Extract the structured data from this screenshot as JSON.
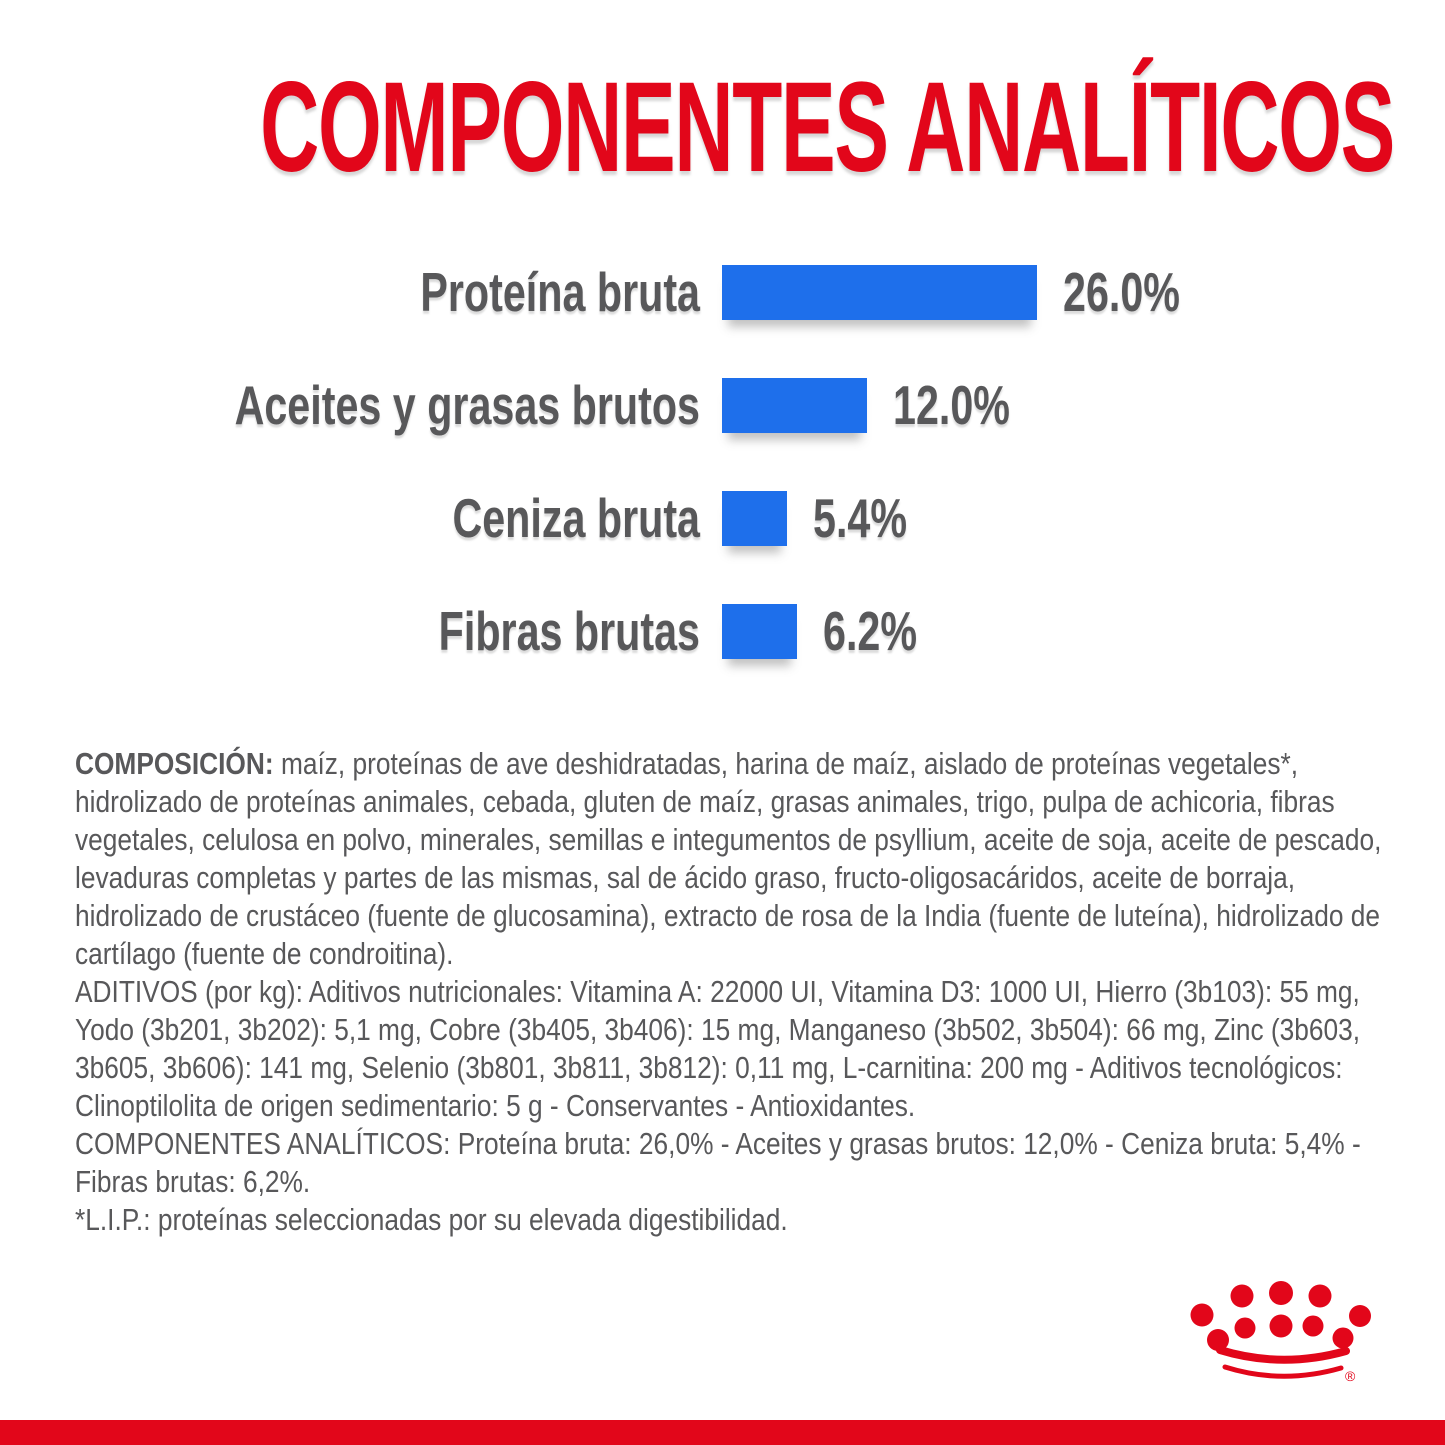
{
  "page": {
    "background": "#ffffff",
    "accent_red": "#E2061A",
    "bar_blue": "#1E6FEB",
    "text_gray": "#58585A"
  },
  "title": "COMPONENTES ANALÍTICOS",
  "chart_data": {
    "type": "bar",
    "orientation": "horizontal",
    "title": "COMPONENTES ANALÍTICOS",
    "categories": [
      "Proteína bruta",
      "Aceites y grasas brutos",
      "Ceniza bruta",
      "Fibras brutas"
    ],
    "values": [
      26.0,
      12.0,
      5.4,
      6.2
    ],
    "value_labels": [
      "26.0%",
      "12.0%",
      "5.4%",
      "6.2%"
    ],
    "bar_color": "#1E6FEB",
    "xlim": [
      0,
      26
    ],
    "grid": false,
    "legend": "none",
    "value_label_position": "right-of-bar",
    "category_label_position": "left-of-bar"
  },
  "info_text": {
    "composition_label": "COMPOSICIÓN:",
    "composition": "maíz, proteínas de ave deshidratadas, harina de maíz, aislado de proteínas vegetales*, hidrolizado de proteínas animales, cebada, gluten de maíz, grasas animales, trigo, pulpa de achicoria, fibras vegetales, celulosa en polvo, minerales, semillas e integumentos de psyllium, aceite de soja, aceite de pescado, levaduras completas y partes de las mismas, sal de ácido graso, fructo-oligosacáridos, aceite de borraja, hidrolizado de crustáceo (fuente de glucosamina), extracto de rosa de la India (fuente de luteína), hidrolizado de cartílago (fuente de condroitina).",
    "additives": "ADITIVOS (por kg): Aditivos nutricionales: Vitamina A: 22000 UI, Vitamina D3: 1000 UI, Hierro (3b103): 55 mg, Yodo (3b201, 3b202): 5,1 mg, Cobre (3b405, 3b406): 15 mg, Manganeso (3b502, 3b504): 66 mg, Zinc (3b603, 3b605, 3b606): 141 mg, Selenio (3b801, 3b811, 3b812): 0,11 mg, L-carnitina: 200 mg - Aditivos tecnológicos: Clinoptilolita de origen sedimentario: 5 g - Conservantes - Antioxidantes.",
    "analytical_components": "COMPONENTES ANALÍTICOS: Proteína bruta: 26,0% - Aceites y grasas brutos: 12,0% - Ceniza bruta: 5,4% - Fibras brutas: 6,2%.",
    "lip_note": "*L.I.P.: proteínas seleccionadas por su elevada digestibilidad."
  },
  "footer": {
    "brand_logo": "royal-canin-crown-icon",
    "registered_mark": "®"
  }
}
